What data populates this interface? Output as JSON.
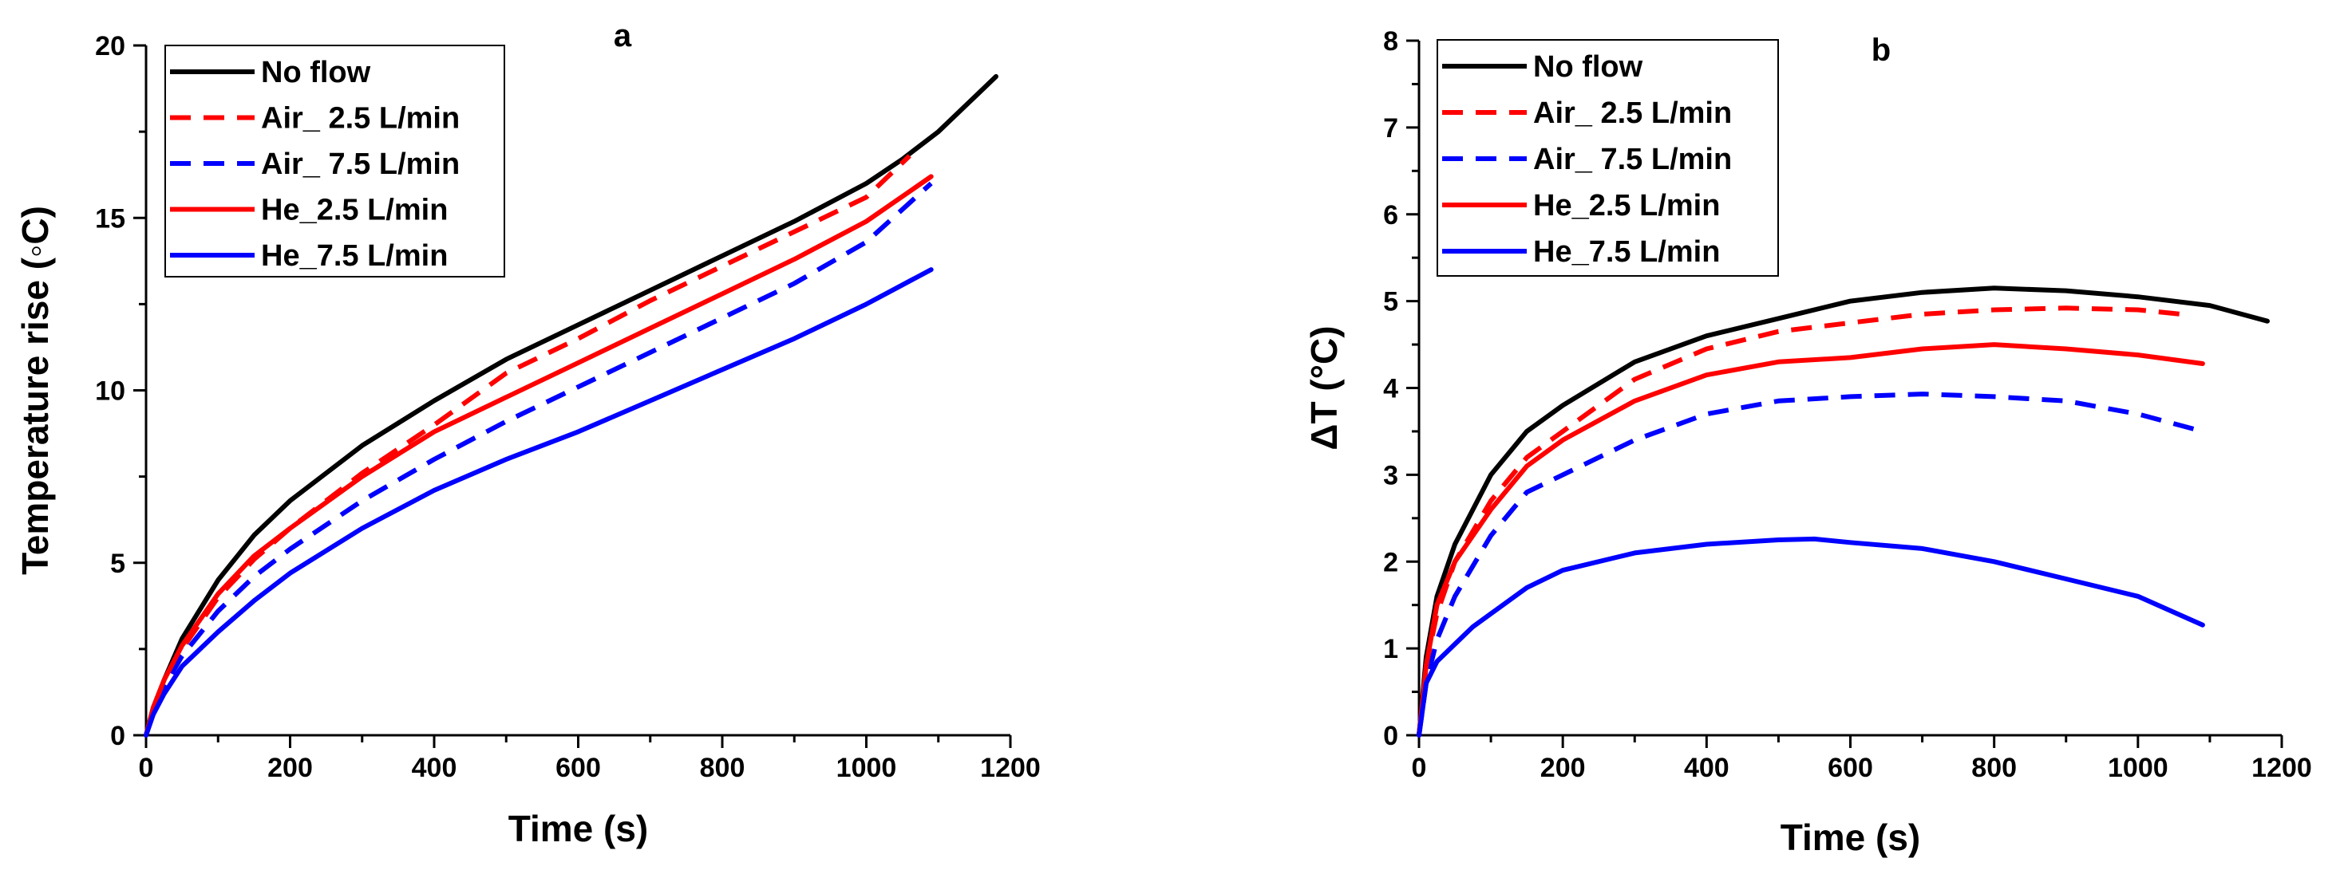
{
  "chart_data": [
    {
      "type": "line",
      "title": "a",
      "xlabel": "Time (s)",
      "ylabel": "Temperature rise (◦C)",
      "xlim": [
        0,
        1200
      ],
      "ylim": [
        0,
        20
      ],
      "xticks": [
        0,
        200,
        400,
        600,
        800,
        1000,
        1200
      ],
      "xtick_labels": [
        "0",
        "200",
        "400",
        "600",
        "800",
        "1000",
        "1200"
      ],
      "yticks": [
        0,
        5,
        10,
        15,
        20
      ],
      "ytick_labels": [
        "0",
        "5",
        "10",
        "15",
        "20"
      ],
      "grid": false,
      "legend_position": "top-left",
      "series": [
        {
          "name": "No flow",
          "color": "#000000",
          "dash": "solid",
          "x": [
            0,
            10,
            25,
            50,
            100,
            150,
            200,
            300,
            400,
            500,
            600,
            700,
            800,
            900,
            1000,
            1050,
            1100,
            1150,
            1180
          ],
          "y": [
            0,
            0.8,
            1.6,
            2.8,
            4.5,
            5.8,
            6.8,
            8.4,
            9.7,
            10.9,
            11.9,
            12.9,
            13.9,
            14.9,
            16.0,
            16.7,
            17.5,
            18.5,
            19.1
          ]
        },
        {
          "name": "Air_ 2.5 L/min",
          "color": "#ff0000",
          "dash": "dashed",
          "x": [
            0,
            10,
            25,
            50,
            100,
            150,
            200,
            300,
            400,
            500,
            600,
            700,
            800,
            900,
            1000,
            1060
          ],
          "y": [
            0,
            0.7,
            1.5,
            2.5,
            4.0,
            5.1,
            6.0,
            7.6,
            9.0,
            10.5,
            11.5,
            12.6,
            13.6,
            14.6,
            15.6,
            16.8
          ]
        },
        {
          "name": "Air_ 7.5 L/min",
          "color": "#0000ff",
          "dash": "dashed",
          "x": [
            0,
            10,
            25,
            50,
            100,
            150,
            200,
            300,
            400,
            500,
            600,
            700,
            800,
            900,
            1000,
            1090
          ],
          "y": [
            0,
            0.7,
            1.4,
            2.3,
            3.6,
            4.6,
            5.4,
            6.8,
            8.0,
            9.1,
            10.1,
            11.1,
            12.1,
            13.1,
            14.3,
            16.0
          ]
        },
        {
          "name": "He_2.5 L/min",
          "color": "#ff0000",
          "dash": "solid",
          "x": [
            0,
            10,
            25,
            50,
            100,
            150,
            200,
            300,
            400,
            500,
            600,
            700,
            800,
            900,
            1000,
            1090
          ],
          "y": [
            0,
            0.8,
            1.6,
            2.6,
            4.1,
            5.2,
            6.0,
            7.5,
            8.8,
            9.8,
            10.8,
            11.8,
            12.8,
            13.8,
            14.9,
            16.2
          ]
        },
        {
          "name": "He_7.5 L/min",
          "color": "#0000ff",
          "dash": "solid",
          "x": [
            0,
            10,
            25,
            50,
            100,
            150,
            200,
            300,
            400,
            500,
            600,
            700,
            800,
            900,
            1000,
            1090
          ],
          "y": [
            0,
            0.6,
            1.2,
            2.0,
            3.0,
            3.9,
            4.7,
            6.0,
            7.1,
            8.0,
            8.8,
            9.7,
            10.6,
            11.5,
            12.5,
            13.5
          ]
        }
      ]
    },
    {
      "type": "line",
      "title": "b",
      "xlabel": "Time (s)",
      "ylabel": "ΔT (°C)",
      "xlim": [
        0,
        1200
      ],
      "ylim": [
        0,
        8
      ],
      "xticks": [
        0,
        200,
        400,
        600,
        800,
        1000,
        1200
      ],
      "xtick_labels": [
        "0",
        "200",
        "400",
        "600",
        "800",
        "1000",
        "1200"
      ],
      "yticks": [
        0,
        1,
        2,
        3,
        4,
        5,
        6,
        7,
        8
      ],
      "ytick_labels": [
        "0",
        "1",
        "2",
        "3",
        "4",
        "5",
        "6",
        "7",
        "8"
      ],
      "grid": false,
      "legend_position": "top-left",
      "series": [
        {
          "name": "No flow",
          "color": "#000000",
          "dash": "solid",
          "x": [
            0,
            10,
            25,
            50,
            100,
            150,
            200,
            300,
            400,
            500,
            600,
            700,
            800,
            900,
            1000,
            1100,
            1180
          ],
          "y": [
            0,
            0.9,
            1.6,
            2.2,
            3.0,
            3.5,
            3.8,
            4.3,
            4.6,
            4.8,
            5.0,
            5.1,
            5.15,
            5.12,
            5.05,
            4.95,
            4.77
          ]
        },
        {
          "name": "Air_ 2.5 L/min",
          "color": "#ff0000",
          "dash": "dashed",
          "x": [
            0,
            10,
            25,
            50,
            100,
            150,
            200,
            300,
            400,
            500,
            600,
            700,
            800,
            900,
            1000,
            1060
          ],
          "y": [
            0,
            0.8,
            1.4,
            2.0,
            2.7,
            3.2,
            3.5,
            4.1,
            4.45,
            4.65,
            4.75,
            4.85,
            4.9,
            4.92,
            4.9,
            4.85
          ]
        },
        {
          "name": "Air_ 7.5 L/min",
          "color": "#0000ff",
          "dash": "dashed",
          "x": [
            0,
            10,
            25,
            50,
            100,
            150,
            200,
            300,
            400,
            500,
            600,
            700,
            800,
            900,
            1000,
            1090
          ],
          "y": [
            0,
            0.6,
            1.1,
            1.6,
            2.3,
            2.8,
            3.0,
            3.4,
            3.7,
            3.85,
            3.9,
            3.93,
            3.9,
            3.85,
            3.7,
            3.5
          ]
        },
        {
          "name": "He_2.5 L/min",
          "color": "#ff0000",
          "dash": "solid",
          "x": [
            0,
            10,
            25,
            50,
            100,
            150,
            200,
            300,
            400,
            500,
            600,
            700,
            800,
            900,
            1000,
            1090
          ],
          "y": [
            0,
            0.8,
            1.5,
            2.0,
            2.6,
            3.1,
            3.4,
            3.85,
            4.15,
            4.3,
            4.35,
            4.45,
            4.5,
            4.45,
            4.38,
            4.28
          ]
        },
        {
          "name": "He_7.5 L/min",
          "color": "#0000ff",
          "dash": "solid",
          "x": [
            0,
            10,
            25,
            50,
            75,
            100,
            150,
            200,
            300,
            400,
            500,
            550,
            600,
            700,
            800,
            900,
            1000,
            1090
          ],
          "y": [
            0,
            0.6,
            0.85,
            1.05,
            1.25,
            1.4,
            1.7,
            1.9,
            2.1,
            2.2,
            2.25,
            2.26,
            2.22,
            2.15,
            2.0,
            1.8,
            1.6,
            1.27
          ]
        }
      ]
    }
  ]
}
